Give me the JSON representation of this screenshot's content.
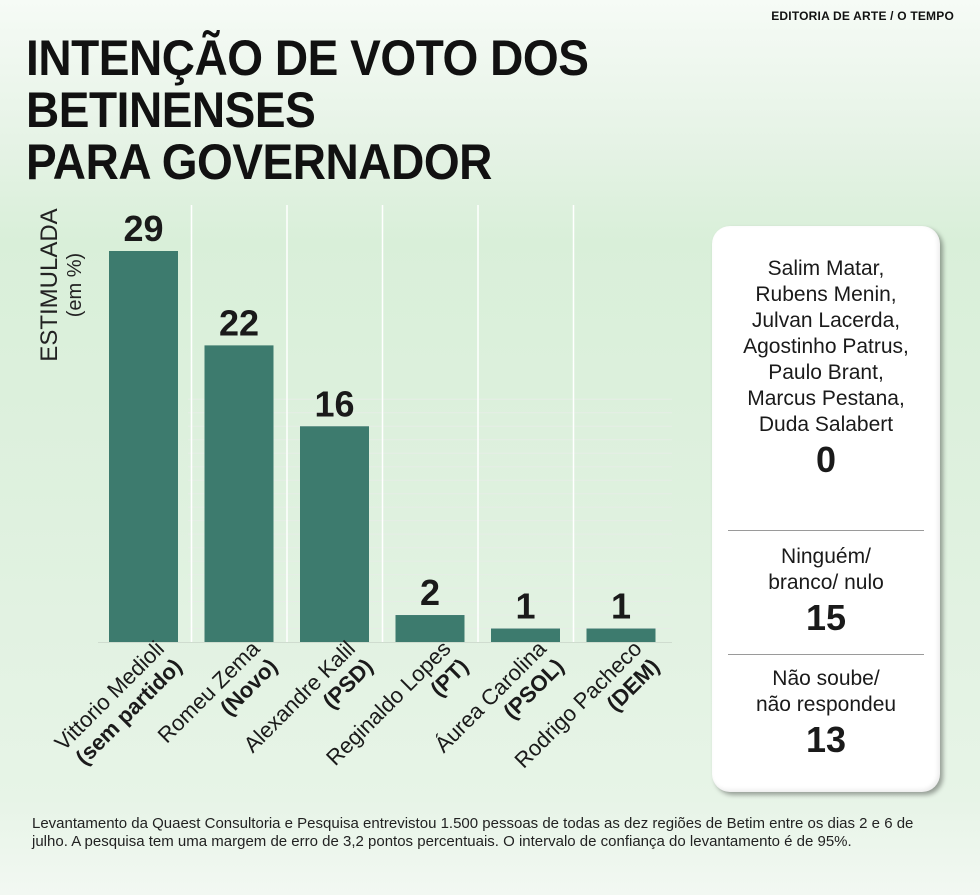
{
  "credit": "EDITORIA DE ARTE / O TEMPO",
  "title_line1": "INTENÇÃO DE VOTO DOS BETINENSES",
  "title_line2": "PARA GOVERNADOR",
  "axis": {
    "label": "ESTIMULADA",
    "unit": "(em %)"
  },
  "chart_data": {
    "type": "bar",
    "title": "INTENÇÃO DE VOTO DOS BETINENSES PARA GOVERNADOR",
    "ylabel": "ESTIMULADA (em %)",
    "xlabel": "",
    "ylim": [
      0,
      29
    ],
    "grid": true,
    "bar_color": "#3d7b6e",
    "categories": [
      {
        "name": "Vittorio Medioli",
        "party": "(sem partido)"
      },
      {
        "name": "Romeu Zema",
        "party": "(Novo)"
      },
      {
        "name": "Alexandre Kalil",
        "party": "(PSD)"
      },
      {
        "name": "Reginaldo Lopes",
        "party": "(PT)"
      },
      {
        "name": "Áurea Carolina",
        "party": "(PSOL)"
      },
      {
        "name": "Rodrigo Pacheco",
        "party": "(DEM)"
      }
    ],
    "values": [
      29,
      22,
      16,
      2,
      1,
      1
    ]
  },
  "side_panel": {
    "groups": [
      {
        "label_lines": [
          "Salim Matar,",
          "Rubens Menin,",
          "Julvan Lacerda,",
          "Agostinho Patrus,",
          "Paulo Brant,",
          "Marcus Pestana,",
          "Duda Salabert"
        ],
        "value": "0"
      },
      {
        "label_lines": [
          "Ninguém/",
          "branco/ nulo"
        ],
        "value": "15"
      },
      {
        "label_lines": [
          "Não soube/",
          "não respondeu"
        ],
        "value": "13"
      }
    ]
  },
  "footer": "Levantamento da Quaest Consultoria e Pesquisa entrevistou 1.500 pessoas de todas as dez regiões de Betim entre os dias 2 e 6 de julho. A pesquisa tem uma margem de erro de 3,2 pontos percentuais. O intervalo de confiança do levantamento é de 95%."
}
